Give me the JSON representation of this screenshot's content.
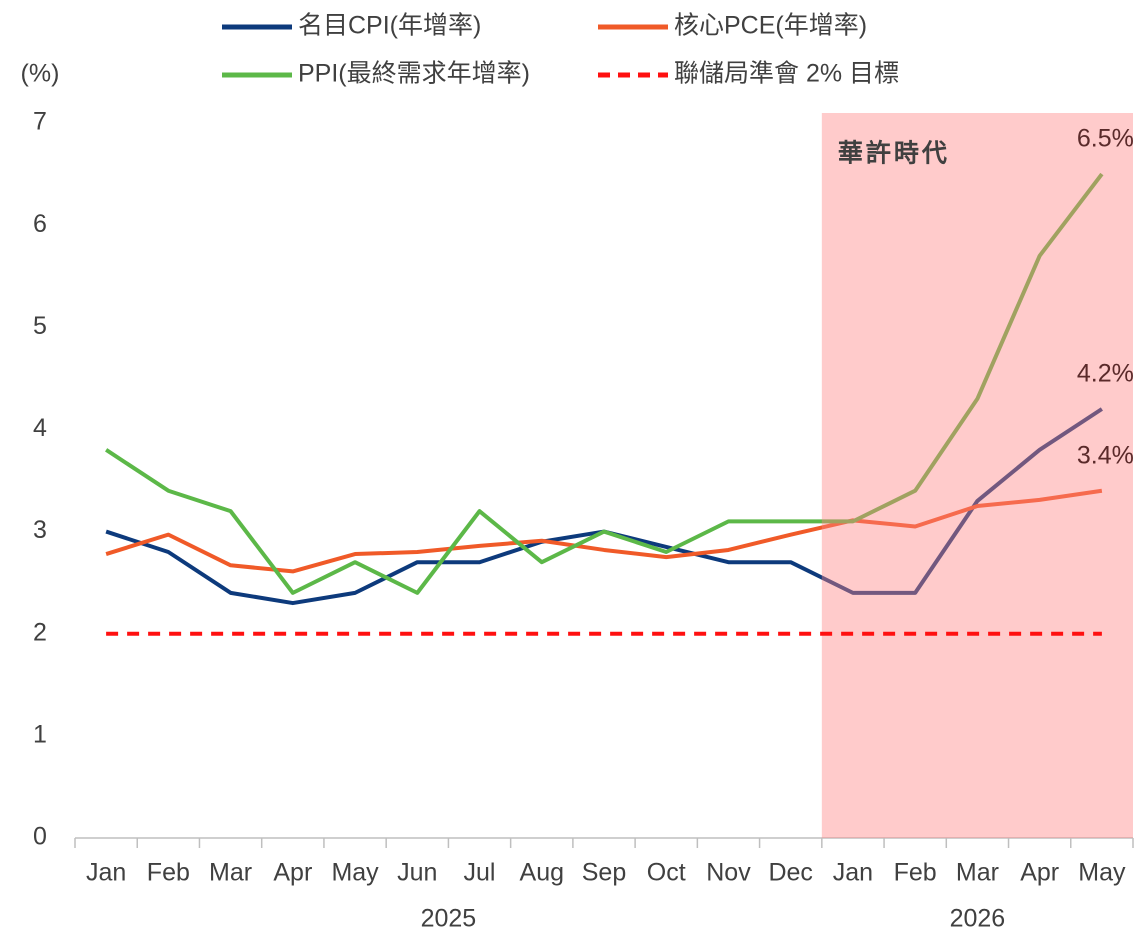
{
  "chart_data": {
    "type": "line",
    "y_label": "(%)",
    "categories": [
      "Jan",
      "Feb",
      "Mar",
      "Apr",
      "May",
      "Jun",
      "Jul",
      "Aug",
      "Sep",
      "Oct",
      "Nov",
      "Dec",
      "Jan",
      "Feb",
      "Mar",
      "Apr",
      "May"
    ],
    "x_groups": [
      "2025",
      "2026"
    ],
    "annotation": "華許時代",
    "ylim": [
      0,
      7
    ],
    "yticks": [
      0,
      1,
      2,
      3,
      4,
      5,
      6,
      7
    ],
    "series": [
      {
        "name": "名目CPI(年增率)",
        "color": "#0d3a7c",
        "values": [
          3.0,
          2.8,
          2.4,
          2.3,
          2.4,
          2.7,
          2.7,
          2.9,
          3.0,
          2.85,
          2.7,
          2.7,
          2.4,
          2.4,
          3.3,
          3.8,
          4.2
        ],
        "value_labels": [
          null,
          null,
          null,
          null,
          null,
          null,
          null,
          null,
          null,
          null,
          null,
          null,
          null,
          null,
          null,
          null,
          "4.2%"
        ]
      },
      {
        "name": "核心PCE(年增率)",
        "color": "#f05a28",
        "values": [
          2.78,
          2.97,
          2.67,
          2.61,
          2.78,
          2.8,
          2.86,
          2.91,
          2.82,
          2.75,
          2.82,
          2.97,
          3.11,
          3.05,
          3.25,
          3.31,
          3.4
        ],
        "value_labels": [
          null,
          null,
          null,
          null,
          null,
          null,
          null,
          null,
          null,
          null,
          null,
          null,
          null,
          null,
          null,
          null,
          "3.4%"
        ]
      },
      {
        "name": "PPI(最終需求年增率)",
        "color": "#5cb848",
        "values": [
          3.8,
          3.4,
          3.2,
          2.4,
          2.7,
          2.4,
          3.2,
          2.7,
          3.0,
          2.8,
          3.1,
          3.1,
          3.1,
          3.4,
          4.3,
          5.7,
          6.5
        ],
        "value_labels": [
          null,
          null,
          null,
          null,
          null,
          null,
          null,
          null,
          null,
          null,
          null,
          null,
          null,
          null,
          null,
          null,
          "6.5%"
        ]
      },
      {
        "name": "聯儲局準會 2% 目標",
        "color": "#ff1010",
        "dashed": true,
        "values": [
          2,
          2,
          2,
          2,
          2,
          2,
          2,
          2,
          2,
          2,
          2,
          2,
          2,
          2,
          2,
          2,
          2
        ]
      }
    ]
  }
}
